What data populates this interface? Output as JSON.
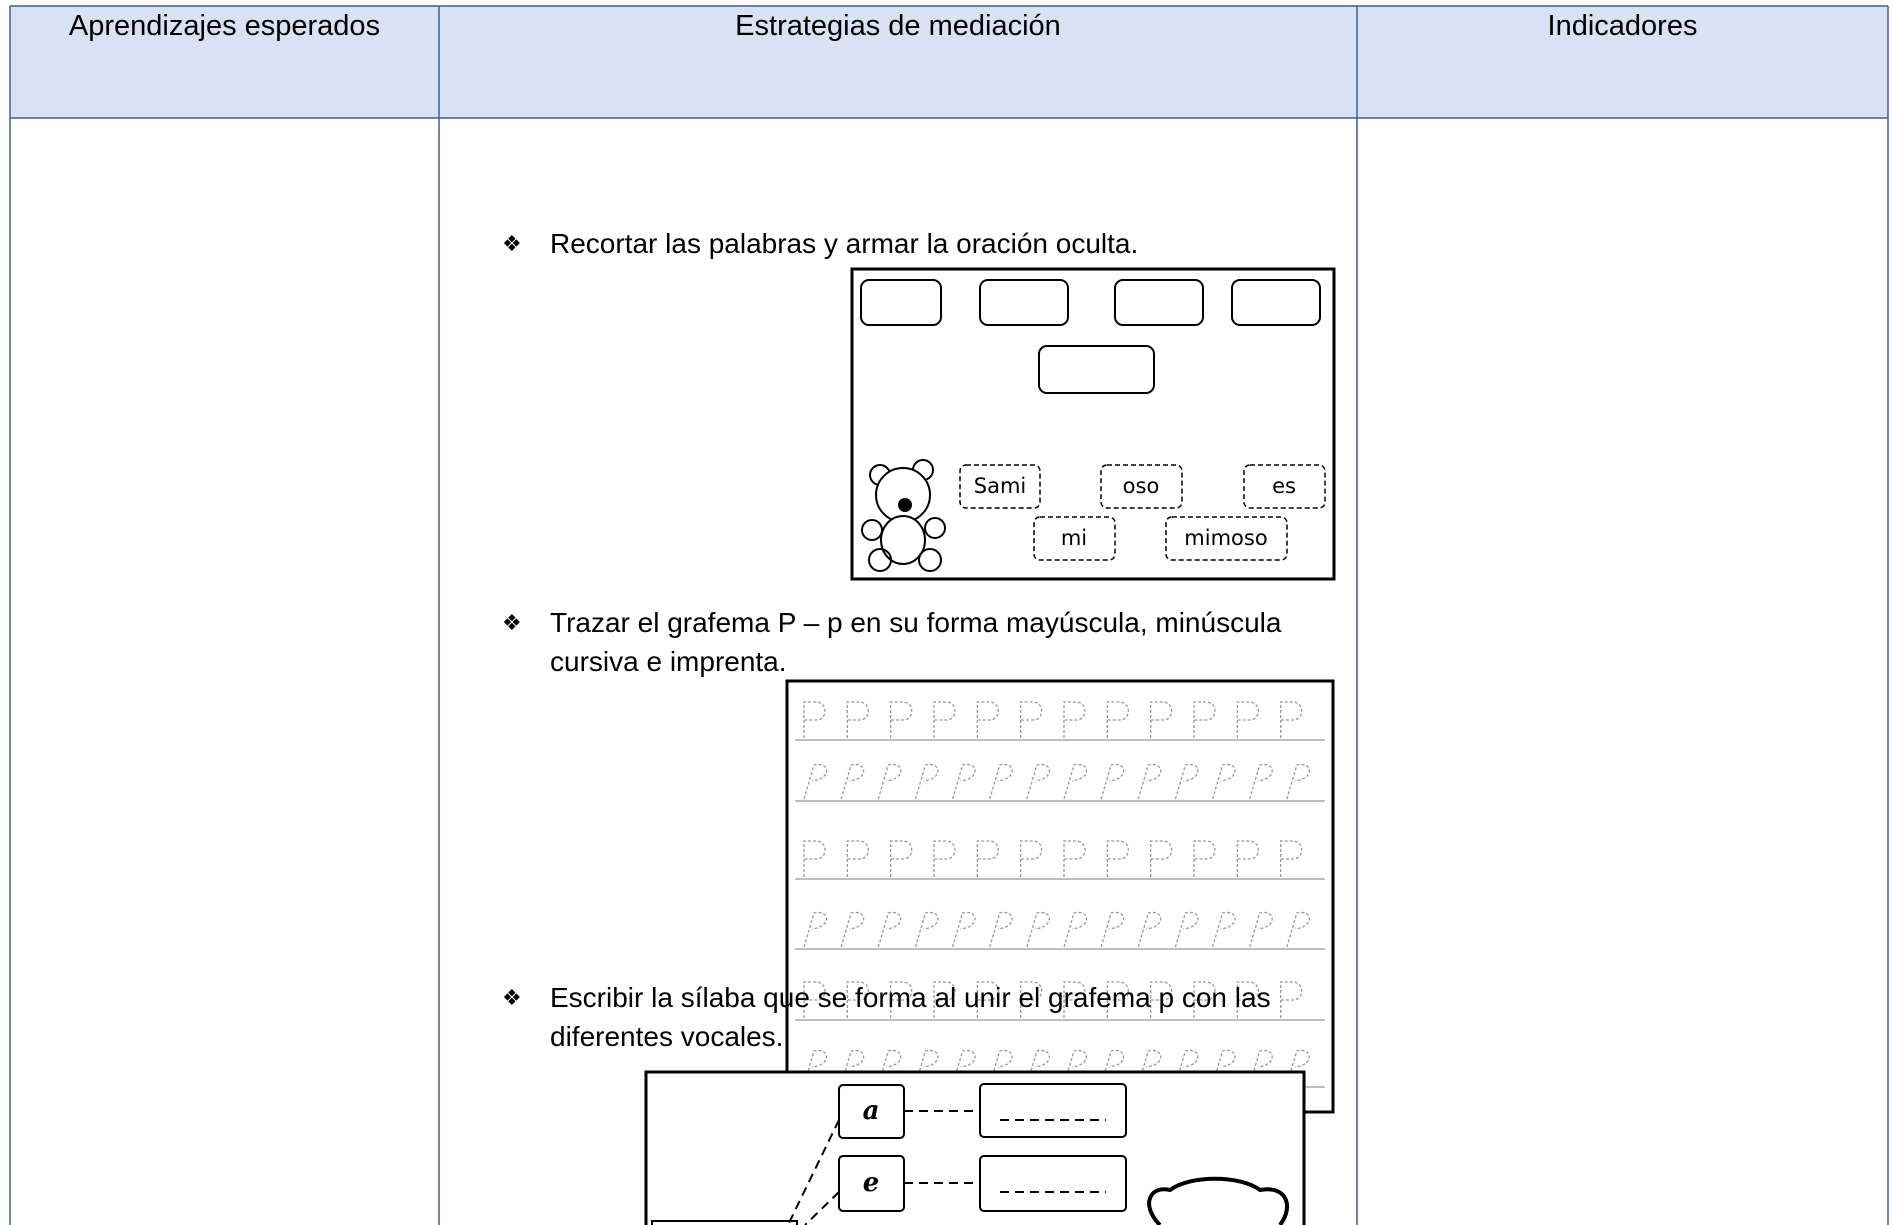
{
  "header": {
    "columns": [
      "Aprendizajes esperados",
      "Estrategias de mediación",
      "Indicadores"
    ]
  },
  "activities": [
    {
      "text": "Recortar las palabras y armar la oración oculta."
    },
    {
      "text": "Trazar el grafema P – p en su forma mayúscula, minúscula cursiva e imprenta."
    },
    {
      "text": "Escribir la sílaba que se forma al unir el grafema p con las diferentes vocales."
    }
  ],
  "word_puzzle": {
    "words": [
      "Sami",
      "oso",
      "es",
      "mi",
      "mimoso"
    ]
  },
  "syllables": {
    "vowels": [
      "a",
      "e"
    ]
  }
}
